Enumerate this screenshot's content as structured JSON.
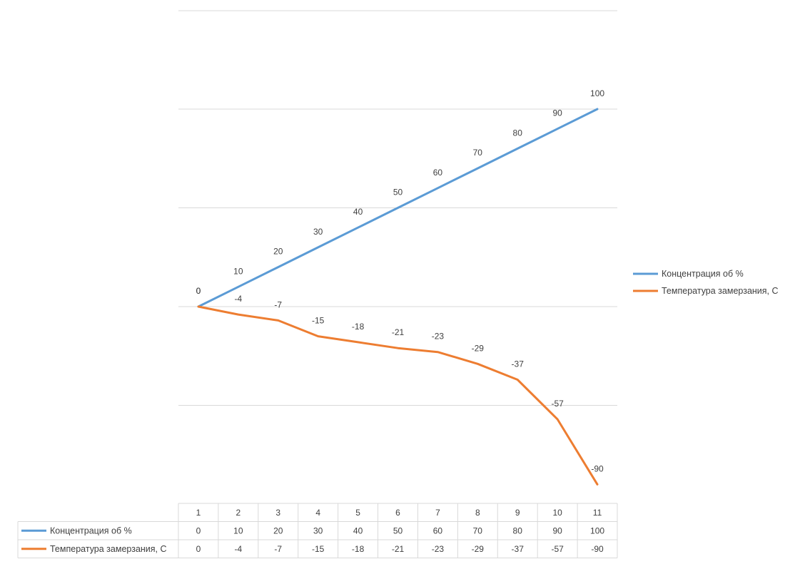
{
  "chart_data": {
    "type": "line",
    "title": "",
    "xlabel": "",
    "ylabel": "",
    "categories": [
      "1",
      "2",
      "3",
      "4",
      "5",
      "6",
      "7",
      "8",
      "9",
      "10",
      "11"
    ],
    "ylim": [
      -100,
      100
    ],
    "y_gridlines": [
      100,
      50,
      0,
      -50
    ],
    "grid": true,
    "legend_position": "right",
    "data_table": true,
    "series": [
      {
        "name": "Концентрация об %",
        "color": "#5B9BD5",
        "values": [
          0,
          10,
          20,
          30,
          40,
          50,
          60,
          70,
          80,
          90,
          100
        ]
      },
      {
        "name": "Температура замерзания, С",
        "color": "#ED7D31",
        "values": [
          0,
          -4,
          -7,
          -15,
          -18,
          -21,
          -23,
          -29,
          -37,
          -57,
          -90
        ]
      }
    ]
  }
}
